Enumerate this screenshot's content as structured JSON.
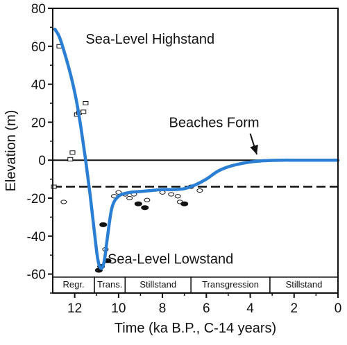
{
  "chart_data": {
    "type": "line",
    "xlabel": "Time (ka B.P., C-14 years)",
    "ylabel": "Elevation (m)",
    "xlim": [
      13,
      0
    ],
    "ylim": [
      -70,
      80
    ],
    "x_reversed": true,
    "x_ticks": [
      "12",
      "10",
      "8",
      "6",
      "4",
      "2",
      "0"
    ],
    "x_tick_values": [
      12,
      10,
      8,
      6,
      4,
      2,
      0
    ],
    "y_ticks": [
      "80",
      "60",
      "40",
      "20",
      "0",
      "-20",
      "-40",
      "-60"
    ],
    "y_tick_values": [
      80,
      60,
      40,
      20,
      0,
      -20,
      -40,
      -60
    ],
    "grid": false,
    "legend": "none",
    "colors": {
      "curve": "#2a7fd4",
      "reference": "#111111",
      "markers": "#111111"
    },
    "series": [
      {
        "kind": "curve",
        "x": [
          12.9,
          12.7,
          12.5,
          12.3,
          12.1,
          11.9,
          11.7,
          11.5,
          11.3,
          11.1,
          10.95,
          10.8,
          10.65,
          10.5,
          10.3,
          10.0,
          9.5,
          9.0,
          8.5,
          8.0,
          7.5,
          7.0,
          6.5,
          6.0,
          5.5,
          5.0,
          4.5,
          4.0,
          3.5,
          3.0,
          2.5,
          2.0,
          1.5,
          1.0,
          0.5,
          0.0
        ],
        "y": [
          69,
          65,
          58,
          50,
          41,
          30,
          16,
          0,
          -18,
          -38,
          -52,
          -57,
          -53,
          -40,
          -25,
          -19,
          -17,
          -16.5,
          -16,
          -15.5,
          -15.5,
          -15,
          -13,
          -10,
          -6,
          -3.5,
          -2,
          -1,
          -0.4,
          -0.1,
          0,
          0,
          0,
          0,
          0,
          0
        ]
      },
      {
        "kind": "markers-open-rect",
        "x": [
          12.95,
          12.7,
          12.2,
          12.1,
          11.9,
          11.8,
          11.6,
          11.5
        ],
        "y": [
          -14,
          60,
          0.5,
          4,
          24,
          25,
          25.5,
          30
        ]
      },
      {
        "kind": "markers-open-ellipse",
        "x": [
          12.5,
          10.6,
          10.2,
          10.0,
          9.7,
          9.5,
          9.3,
          8.7,
          8.0,
          7.6,
          7.3,
          7.2,
          6.7,
          6.3
        ],
        "y": [
          -22,
          -47,
          -19,
          -17,
          -18,
          -20,
          -18,
          -21,
          -17,
          -18,
          -19,
          -22,
          -14,
          -16
        ]
      },
      {
        "kind": "markers-filled-ellipse",
        "x": [
          10.9,
          10.8,
          10.5,
          10.7,
          9.1,
          8.8,
          7.0
        ],
        "y": [
          -58,
          -56,
          -53,
          -34,
          -23,
          -25,
          -23
        ]
      }
    ],
    "reference_lines": [
      {
        "y": 0,
        "style": "solid"
      },
      {
        "y": -14,
        "style": "dashed"
      }
    ],
    "annotations": [
      {
        "text": "Sea-Level Highstand",
        "x": 11.5,
        "y": 64
      },
      {
        "text": "Beaches Form",
        "x": 7.7,
        "y": 20
      },
      {
        "text": "Sea-Level Lowstand",
        "x": 10.5,
        "y": -52
      }
    ],
    "arrow": {
      "from": [
        4.0,
        14
      ],
      "to": [
        3.7,
        3
      ]
    },
    "phases": [
      {
        "label": "Regr.",
        "x_start": 13,
        "x_end": 11.1
      },
      {
        "label": "Trans.",
        "x_start": 11.1,
        "x_end": 9.7
      },
      {
        "label": "Stillstand",
        "x_start": 9.7,
        "x_end": 6.7
      },
      {
        "label": "Transgression",
        "x_start": 6.7,
        "x_end": 3.1
      },
      {
        "label": "Stillstand",
        "x_start": 3.1,
        "x_end": 0
      }
    ]
  }
}
